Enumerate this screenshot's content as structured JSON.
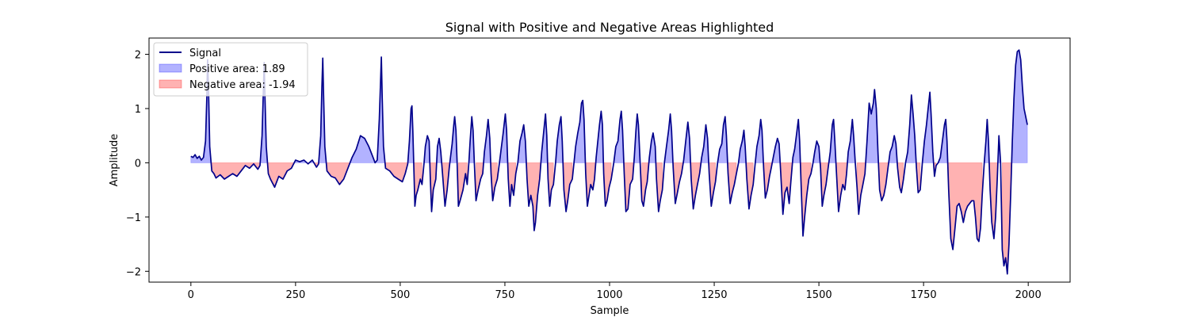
{
  "chart_data": {
    "type": "area",
    "title": "Signal with Positive and Negative Areas Highlighted",
    "xlabel": "Sample",
    "ylabel": "Amplitude",
    "xlim": [
      -100,
      2100
    ],
    "ylim": [
      -2.2,
      2.3
    ],
    "xticks": [
      0,
      250,
      500,
      750,
      1000,
      1250,
      1500,
      1750,
      2000
    ],
    "xtick_labels": [
      "0",
      "250",
      "500",
      "750",
      "1000",
      "1250",
      "1500",
      "1750",
      "2000"
    ],
    "yticks": [
      -2,
      -1,
      0,
      1,
      2
    ],
    "ytick_labels": [
      "−2",
      "−1",
      "0",
      "1",
      "2"
    ],
    "grid": false,
    "legend_position": "top-left",
    "series": [
      {
        "name": "Signal",
        "kind": "line",
        "color": "#00008b"
      },
      {
        "name": "Positive area: 1.89",
        "kind": "fill",
        "color": "#0000ff",
        "alpha": 0.3
      },
      {
        "name": "Negative area: -1.94",
        "kind": "fill",
        "color": "#ff0000",
        "alpha": 0.3
      }
    ],
    "signal_points": [
      [
        0,
        0.12
      ],
      [
        5,
        0.1
      ],
      [
        10,
        0.15
      ],
      [
        15,
        0.08
      ],
      [
        20,
        0.12
      ],
      [
        25,
        0.05
      ],
      [
        30,
        0.1
      ],
      [
        35,
        0.4
      ],
      [
        38,
        1.2
      ],
      [
        40,
        1.9
      ],
      [
        42,
        1.4
      ],
      [
        45,
        0.3
      ],
      [
        50,
        -0.15
      ],
      [
        55,
        -0.2
      ],
      [
        60,
        -0.28
      ],
      [
        70,
        -0.22
      ],
      [
        80,
        -0.3
      ],
      [
        90,
        -0.25
      ],
      [
        100,
        -0.2
      ],
      [
        110,
        -0.25
      ],
      [
        120,
        -0.15
      ],
      [
        130,
        -0.05
      ],
      [
        140,
        -0.1
      ],
      [
        150,
        -0.02
      ],
      [
        160,
        -0.12
      ],
      [
        165,
        -0.05
      ],
      [
        170,
        0.5
      ],
      [
        173,
        1.3
      ],
      [
        175,
        1.85
      ],
      [
        177,
        1.2
      ],
      [
        180,
        0.3
      ],
      [
        185,
        -0.2
      ],
      [
        190,
        -0.3
      ],
      [
        200,
        -0.45
      ],
      [
        210,
        -0.25
      ],
      [
        220,
        -0.3
      ],
      [
        230,
        -0.15
      ],
      [
        240,
        -0.1
      ],
      [
        250,
        0.05
      ],
      [
        260,
        0.02
      ],
      [
        270,
        0.05
      ],
      [
        280,
        -0.02
      ],
      [
        290,
        0.05
      ],
      [
        300,
        -0.08
      ],
      [
        305,
        -0.02
      ],
      [
        310,
        0.5
      ],
      [
        313,
        1.4
      ],
      [
        315,
        1.93
      ],
      [
        317,
        1.2
      ],
      [
        320,
        0.3
      ],
      [
        325,
        -0.15
      ],
      [
        335,
        -0.25
      ],
      [
        345,
        -0.28
      ],
      [
        355,
        -0.4
      ],
      [
        365,
        -0.3
      ],
      [
        375,
        -0.1
      ],
      [
        385,
        0.1
      ],
      [
        395,
        0.25
      ],
      [
        405,
        0.5
      ],
      [
        415,
        0.45
      ],
      [
        425,
        0.3
      ],
      [
        435,
        0.1
      ],
      [
        440,
        0.0
      ],
      [
        445,
        0.05
      ],
      [
        450,
        0.8
      ],
      [
        453,
        1.5
      ],
      [
        455,
        1.95
      ],
      [
        457,
        1.2
      ],
      [
        460,
        0.3
      ],
      [
        465,
        -0.1
      ],
      [
        475,
        -0.15
      ],
      [
        485,
        -0.25
      ],
      [
        495,
        -0.3
      ],
      [
        505,
        -0.35
      ],
      [
        512,
        -0.2
      ],
      [
        518,
        -0.02
      ],
      [
        522,
        0.4
      ],
      [
        526,
        1.0
      ],
      [
        528,
        1.05
      ],
      [
        530,
        0.6
      ],
      [
        533,
        -0.2
      ],
      [
        535,
        -0.8
      ],
      [
        538,
        -0.6
      ],
      [
        542,
        -0.5
      ],
      [
        548,
        -0.3
      ],
      [
        552,
        -0.4
      ],
      [
        557,
        0.0
      ],
      [
        560,
        0.3
      ],
      [
        565,
        0.5
      ],
      [
        569,
        0.4
      ],
      [
        572,
        -0.3
      ],
      [
        575,
        -0.9
      ],
      [
        579,
        -0.5
      ],
      [
        585,
        -0.3
      ],
      [
        589,
        0.3
      ],
      [
        593,
        0.45
      ],
      [
        597,
        0.2
      ],
      [
        602,
        -0.3
      ],
      [
        607,
        -0.8
      ],
      [
        612,
        -0.5
      ],
      [
        617,
        -0.1
      ],
      [
        620,
        0.1
      ],
      [
        624,
        0.35
      ],
      [
        628,
        0.7
      ],
      [
        630,
        0.85
      ],
      [
        633,
        0.6
      ],
      [
        636,
        0.0
      ],
      [
        639,
        -0.8
      ],
      [
        643,
        -0.7
      ],
      [
        650,
        -0.5
      ],
      [
        656,
        -0.2
      ],
      [
        660,
        -0.4
      ],
      [
        664,
        0.0
      ],
      [
        667,
        0.4
      ],
      [
        671,
        0.85
      ],
      [
        674,
        0.6
      ],
      [
        677,
        0.0
      ],
      [
        681,
        -0.7
      ],
      [
        686,
        -0.5
      ],
      [
        692,
        -0.3
      ],
      [
        697,
        -0.2
      ],
      [
        701,
        0.2
      ],
      [
        706,
        0.5
      ],
      [
        710,
        0.8
      ],
      [
        714,
        0.45
      ],
      [
        717,
        -0.2
      ],
      [
        721,
        -0.7
      ],
      [
        726,
        -0.45
      ],
      [
        732,
        -0.3
      ],
      [
        737,
        0.0
      ],
      [
        741,
        0.25
      ],
      [
        746,
        0.55
      ],
      [
        751,
        0.9
      ],
      [
        754,
        0.6
      ],
      [
        758,
        -0.3
      ],
      [
        762,
        -0.8
      ],
      [
        766,
        -0.4
      ],
      [
        771,
        -0.6
      ],
      [
        776,
        -0.2
      ],
      [
        781,
        0.0
      ],
      [
        786,
        0.4
      ],
      [
        791,
        0.55
      ],
      [
        795,
        0.7
      ],
      [
        799,
        0.4
      ],
      [
        803,
        -0.3
      ],
      [
        807,
        -0.8
      ],
      [
        812,
        -0.6
      ],
      [
        817,
        -0.8
      ],
      [
        820,
        -1.25
      ],
      [
        823,
        -1.1
      ],
      [
        828,
        -0.6
      ],
      [
        833,
        -0.3
      ],
      [
        838,
        0.2
      ],
      [
        843,
        0.6
      ],
      [
        847,
        0.9
      ],
      [
        850,
        0.5
      ],
      [
        853,
        -0.3
      ],
      [
        857,
        -0.8
      ],
      [
        861,
        -0.5
      ],
      [
        866,
        -0.4
      ],
      [
        871,
        0.0
      ],
      [
        875,
        0.4
      ],
      [
        880,
        0.7
      ],
      [
        884,
        0.85
      ],
      [
        887,
        0.4
      ],
      [
        891,
        -0.5
      ],
      [
        896,
        -0.9
      ],
      [
        900,
        -0.7
      ],
      [
        905,
        -0.4
      ],
      [
        911,
        -0.3
      ],
      [
        915,
        0.0
      ],
      [
        919,
        0.3
      ],
      [
        924,
        0.55
      ],
      [
        929,
        0.75
      ],
      [
        933,
        1.1
      ],
      [
        936,
        1.15
      ],
      [
        939,
        0.8
      ],
      [
        943,
        -0.2
      ],
      [
        947,
        -0.8
      ],
      [
        951,
        -0.6
      ],
      [
        955,
        -0.4
      ],
      [
        960,
        -0.5
      ],
      [
        964,
        -0.3
      ],
      [
        968,
        0.1
      ],
      [
        972,
        0.4
      ],
      [
        976,
        0.7
      ],
      [
        980,
        0.95
      ],
      [
        983,
        0.7
      ],
      [
        986,
        -0.2
      ],
      [
        990,
        -0.8
      ],
      [
        994,
        -0.7
      ],
      [
        999,
        -0.45
      ],
      [
        1004,
        -0.3
      ],
      [
        1010,
        0.0
      ],
      [
        1015,
        0.3
      ],
      [
        1020,
        0.4
      ],
      [
        1025,
        0.8
      ],
      [
        1028,
        0.95
      ],
      [
        1031,
        0.6
      ],
      [
        1035,
        -0.2
      ],
      [
        1039,
        -0.9
      ],
      [
        1044,
        -0.85
      ],
      [
        1049,
        -0.4
      ],
      [
        1055,
        -0.3
      ],
      [
        1059,
        0.1
      ],
      [
        1063,
        0.6
      ],
      [
        1066,
        0.9
      ],
      [
        1069,
        0.7
      ],
      [
        1073,
        0.0
      ],
      [
        1077,
        -0.7
      ],
      [
        1081,
        -0.8
      ],
      [
        1086,
        -0.5
      ],
      [
        1090,
        -0.35
      ],
      [
        1095,
        0.1
      ],
      [
        1100,
        0.4
      ],
      [
        1104,
        0.55
      ],
      [
        1109,
        0.3
      ],
      [
        1112,
        -0.3
      ],
      [
        1117,
        -0.9
      ],
      [
        1121,
        -0.7
      ],
      [
        1126,
        -0.5
      ],
      [
        1131,
        0.0
      ],
      [
        1136,
        0.3
      ],
      [
        1141,
        0.6
      ],
      [
        1145,
        0.9
      ],
      [
        1148,
        0.6
      ],
      [
        1152,
        -0.1
      ],
      [
        1157,
        -0.75
      ],
      [
        1162,
        -0.55
      ],
      [
        1167,
        -0.35
      ],
      [
        1172,
        -0.2
      ],
      [
        1177,
        0.05
      ],
      [
        1182,
        0.4
      ],
      [
        1187,
        0.75
      ],
      [
        1191,
        0.45
      ],
      [
        1195,
        -0.3
      ],
      [
        1200,
        -0.85
      ],
      [
        1205,
        -0.6
      ],
      [
        1210,
        -0.4
      ],
      [
        1215,
        -0.2
      ],
      [
        1220,
        0.1
      ],
      [
        1225,
        0.3
      ],
      [
        1230,
        0.7
      ],
      [
        1234,
        0.45
      ],
      [
        1238,
        -0.2
      ],
      [
        1243,
        -0.8
      ],
      [
        1248,
        -0.55
      ],
      [
        1253,
        -0.35
      ],
      [
        1258,
        0.0
      ],
      [
        1263,
        0.25
      ],
      [
        1268,
        0.35
      ],
      [
        1272,
        0.7
      ],
      [
        1276,
        0.85
      ],
      [
        1279,
        0.5
      ],
      [
        1283,
        -0.2
      ],
      [
        1288,
        -0.75
      ],
      [
        1293,
        -0.55
      ],
      [
        1298,
        -0.4
      ],
      [
        1303,
        -0.2
      ],
      [
        1308,
        0.0
      ],
      [
        1312,
        0.25
      ],
      [
        1317,
        0.4
      ],
      [
        1321,
        0.6
      ],
      [
        1324,
        0.3
      ],
      [
        1328,
        -0.3
      ],
      [
        1333,
        -0.85
      ],
      [
        1338,
        -0.6
      ],
      [
        1343,
        -0.4
      ],
      [
        1348,
        0.0
      ],
      [
        1352,
        0.3
      ],
      [
        1357,
        0.5
      ],
      [
        1361,
        0.8
      ],
      [
        1364,
        0.6
      ],
      [
        1368,
        -0.1
      ],
      [
        1372,
        -0.65
      ],
      [
        1377,
        -0.5
      ],
      [
        1382,
        -0.25
      ],
      [
        1386,
        -0.1
      ],
      [
        1391,
        0.1
      ],
      [
        1396,
        0.3
      ],
      [
        1401,
        0.45
      ],
      [
        1405,
        0.35
      ],
      [
        1409,
        -0.2
      ],
      [
        1414,
        -0.95
      ],
      [
        1419,
        -0.55
      ],
      [
        1424,
        -0.45
      ],
      [
        1429,
        -0.75
      ],
      [
        1433,
        -0.35
      ],
      [
        1438,
        0.1
      ],
      [
        1442,
        0.25
      ],
      [
        1447,
        0.55
      ],
      [
        1451,
        0.8
      ],
      [
        1454,
        0.4
      ],
      [
        1458,
        -0.5
      ],
      [
        1462,
        -1.35
      ],
      [
        1466,
        -1.0
      ],
      [
        1471,
        -0.6
      ],
      [
        1476,
        -0.3
      ],
      [
        1481,
        -0.2
      ],
      [
        1486,
        0.0
      ],
      [
        1490,
        0.2
      ],
      [
        1495,
        0.4
      ],
      [
        1500,
        0.3
      ],
      [
        1504,
        -0.1
      ],
      [
        1508,
        -0.8
      ],
      [
        1512,
        -0.6
      ],
      [
        1517,
        -0.4
      ],
      [
        1522,
        -0.1
      ],
      [
        1527,
        0.2
      ],
      [
        1532,
        0.7
      ],
      [
        1535,
        0.8
      ],
      [
        1538,
        0.4
      ],
      [
        1542,
        -0.2
      ],
      [
        1547,
        -0.9
      ],
      [
        1552,
        -0.6
      ],
      [
        1557,
        -0.4
      ],
      [
        1562,
        -0.5
      ],
      [
        1566,
        -0.2
      ],
      [
        1570,
        0.2
      ],
      [
        1575,
        0.4
      ],
      [
        1580,
        0.8
      ],
      [
        1583,
        0.5
      ],
      [
        1587,
        0.0
      ],
      [
        1591,
        -0.45
      ],
      [
        1595,
        -0.95
      ],
      [
        1600,
        -0.6
      ],
      [
        1605,
        -0.4
      ],
      [
        1610,
        -0.2
      ],
      [
        1615,
        0.4
      ],
      [
        1620,
        1.1
      ],
      [
        1625,
        0.9
      ],
      [
        1630,
        1.1
      ],
      [
        1633,
        1.35
      ],
      [
        1637,
        1.0
      ],
      [
        1641,
        0.2
      ],
      [
        1645,
        -0.5
      ],
      [
        1650,
        -0.7
      ],
      [
        1655,
        -0.6
      ],
      [
        1660,
        -0.4
      ],
      [
        1665,
        -0.1
      ],
      [
        1670,
        0.2
      ],
      [
        1675,
        0.3
      ],
      [
        1680,
        0.5
      ],
      [
        1684,
        0.35
      ],
      [
        1688,
        -0.1
      ],
      [
        1693,
        -0.45
      ],
      [
        1697,
        -0.55
      ],
      [
        1702,
        -0.3
      ],
      [
        1707,
        0.0
      ],
      [
        1712,
        0.2
      ],
      [
        1717,
        0.7
      ],
      [
        1721,
        1.25
      ],
      [
        1725,
        0.9
      ],
      [
        1729,
        0.5
      ],
      [
        1733,
        -0.1
      ],
      [
        1737,
        -0.55
      ],
      [
        1742,
        -0.5
      ],
      [
        1747,
        0.0
      ],
      [
        1752,
        0.4
      ],
      [
        1757,
        0.7
      ],
      [
        1761,
        1.0
      ],
      [
        1765,
        1.3
      ],
      [
        1768,
        0.9
      ],
      [
        1772,
        0.2
      ],
      [
        1776,
        -0.25
      ],
      [
        1780,
        -0.05
      ],
      [
        1785,
        0.0
      ],
      [
        1790,
        0.1
      ],
      [
        1795,
        0.4
      ],
      [
        1800,
        0.7
      ],
      [
        1803,
        0.8
      ],
      [
        1806,
        0.4
      ],
      [
        1810,
        -0.5
      ],
      [
        1815,
        -1.4
      ],
      [
        1820,
        -1.6
      ],
      [
        1825,
        -1.2
      ],
      [
        1830,
        -0.8
      ],
      [
        1835,
        -0.75
      ],
      [
        1840,
        -0.9
      ],
      [
        1845,
        -1.1
      ],
      [
        1850,
        -0.9
      ],
      [
        1855,
        -0.8
      ],
      [
        1860,
        -0.75
      ],
      [
        1865,
        -0.7
      ],
      [
        1870,
        -0.7
      ],
      [
        1874,
        -1.0
      ],
      [
        1878,
        -1.4
      ],
      [
        1882,
        -1.45
      ],
      [
        1886,
        -1.2
      ],
      [
        1890,
        -0.6
      ],
      [
        1895,
        0.0
      ],
      [
        1899,
        0.4
      ],
      [
        1902,
        0.8
      ],
      [
        1905,
        0.4
      ],
      [
        1909,
        -0.5
      ],
      [
        1913,
        -1.1
      ],
      [
        1918,
        -1.4
      ],
      [
        1922,
        -1.0
      ],
      [
        1926,
        -0.3
      ],
      [
        1930,
        0.5
      ],
      [
        1934,
        0.0
      ],
      [
        1938,
        -1.6
      ],
      [
        1942,
        -1.9
      ],
      [
        1946,
        -1.75
      ],
      [
        1950,
        -2.05
      ],
      [
        1954,
        -1.5
      ],
      [
        1958,
        -0.6
      ],
      [
        1962,
        0.4
      ],
      [
        1966,
        1.2
      ],
      [
        1970,
        1.8
      ],
      [
        1974,
        2.05
      ],
      [
        1978,
        2.08
      ],
      [
        1982,
        1.9
      ],
      [
        1986,
        1.4
      ],
      [
        1990,
        1.0
      ],
      [
        1994,
        0.85
      ],
      [
        1998,
        0.7
      ]
    ]
  }
}
